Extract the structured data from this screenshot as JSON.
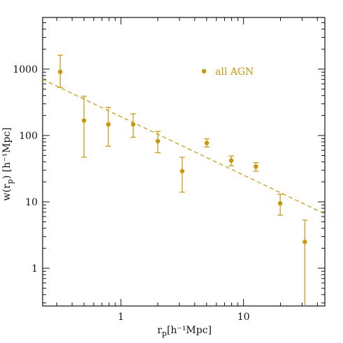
{
  "chart_data": {
    "type": "scatter",
    "x_scale": "log",
    "y_scale": "log",
    "xlim": [
      0.23,
      46
    ],
    "ylim": [
      0.27,
      6000
    ],
    "grid": false,
    "legend_position": "top-right",
    "colors": {
      "series": "#C8960A",
      "axis": "#111111"
    },
    "title": "",
    "xlabel": {
      "base": "r",
      "sub": "p",
      "rest": "[h⁻¹Mpc]"
    },
    "ylabel": {
      "base": "w(r",
      "sub": "p",
      "rest": ") [h⁻¹Mpc]"
    },
    "x_ticks": [
      {
        "value": 1,
        "label": "1"
      },
      {
        "value": 10,
        "label": "10"
      }
    ],
    "y_ticks": [
      {
        "value": 1,
        "label": "1"
      },
      {
        "value": 10,
        "label": "10"
      },
      {
        "value": 100,
        "label": "100"
      },
      {
        "value": 1000,
        "label": "1000"
      }
    ],
    "series": [
      {
        "name": "all AGN",
        "points": [
          {
            "x": 0.32,
            "y": 910,
            "ylo": 530,
            "yhi": 1620
          },
          {
            "x": 0.5,
            "y": 168,
            "ylo": 47,
            "yhi": 390
          },
          {
            "x": 0.79,
            "y": 147,
            "ylo": 69,
            "yhi": 265
          },
          {
            "x": 1.26,
            "y": 147,
            "ylo": 94,
            "yhi": 212
          },
          {
            "x": 2.0,
            "y": 82,
            "ylo": 55,
            "yhi": 115
          },
          {
            "x": 3.16,
            "y": 29,
            "ylo": 14,
            "yhi": 47
          },
          {
            "x": 5.01,
            "y": 77,
            "ylo": 67,
            "yhi": 89
          },
          {
            "x": 7.94,
            "y": 42,
            "ylo": 35,
            "yhi": 49
          },
          {
            "x": 12.6,
            "y": 34,
            "ylo": 29,
            "yhi": 39
          },
          {
            "x": 19.9,
            "y": 9.5,
            "ylo": 6.3,
            "yhi": 13
          },
          {
            "x": 31.6,
            "y": 2.5,
            "ylo": 0.27,
            "yhi": 5.3
          }
        ]
      }
    ],
    "fit_line": {
      "style": "dashed",
      "points": [
        {
          "x": 0.23,
          "y": 700
        },
        {
          "x": 46,
          "y": 6.6
        }
      ]
    }
  }
}
